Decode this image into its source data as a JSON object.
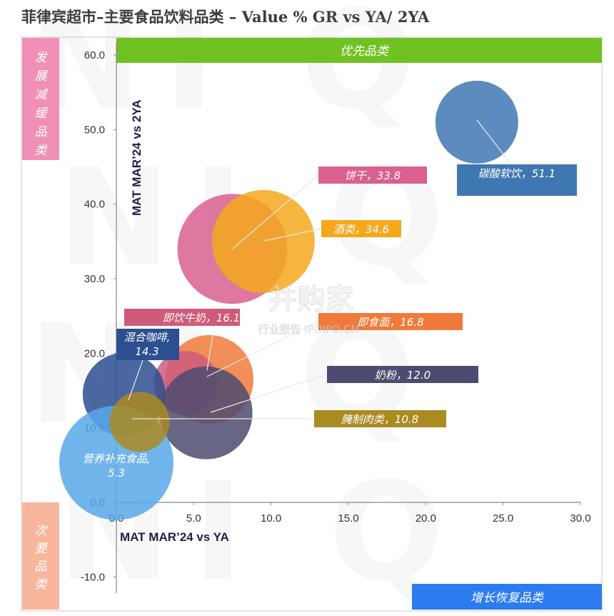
{
  "title": "菲律宾超市–主要食品饮料品类 – Value % GR vs YA/ 2YA",
  "quadrants": {
    "top_left": "发展减缓品类",
    "top": "优先品类",
    "bottom_left": "次要品类",
    "bottom_right": "增长恢复品类"
  },
  "watermark": {
    "brand": "并购家",
    "sub": "行业报告 IPOIPO.CN"
  },
  "chart_data": {
    "type": "bubble",
    "xlabel": "MAT MAR’24 vs YA",
    "ylabel": "MAT MAR’24 vs 2YA",
    "xlim": [
      0,
      30
    ],
    "ylim": [
      -10,
      60
    ],
    "x_ticks": [
      "0.0",
      "5.0",
      "10.0",
      "15.0",
      "20.0",
      "25.0",
      "30.0"
    ],
    "y_ticks": [
      "60.0",
      "50.0",
      "40.0",
      "30.0",
      "20.0",
      "10.0",
      "0.0",
      "-10.0"
    ],
    "series": [
      {
        "name": "饼干",
        "label": "饼干，33.8",
        "x": 7.5,
        "y": 34,
        "color": "#d9608f"
      },
      {
        "name": "酒类",
        "label": "酒类，34.6",
        "x": 9.5,
        "y": 35,
        "color": "#f5a81c"
      },
      {
        "name": "碳酸软饮",
        "label": "碳酸软饮，51.1",
        "x": 23.3,
        "y": 51,
        "color": "#3f78b1"
      },
      {
        "name": "即饮牛奶",
        "label": "即饮牛奶，16.1",
        "x": 4.5,
        "y": 16,
        "color": "#cf5a7c"
      },
      {
        "name": "即食面",
        "label": "即食面，16.8",
        "x": 6,
        "y": 16.5,
        "color": "#f07a3a"
      },
      {
        "name": "混合咖啡",
        "label": "混合咖啡,\n14.3",
        "x": 0.5,
        "y": 14.5,
        "color": "#2b4f8f"
      },
      {
        "name": "奶粉",
        "label": "奶粉，12.0",
        "x": 5.8,
        "y": 12,
        "color": "#4c4b70"
      },
      {
        "name": "腌制肉类",
        "label": "腌制肉类，10.8",
        "x": 1.5,
        "y": 10.8,
        "color": "#a98b22"
      },
      {
        "name": "营养补充食品",
        "label": "营养补充食品,\n5.3",
        "x": 0,
        "y": 5.3,
        "color": "#58a8ea"
      }
    ]
  }
}
